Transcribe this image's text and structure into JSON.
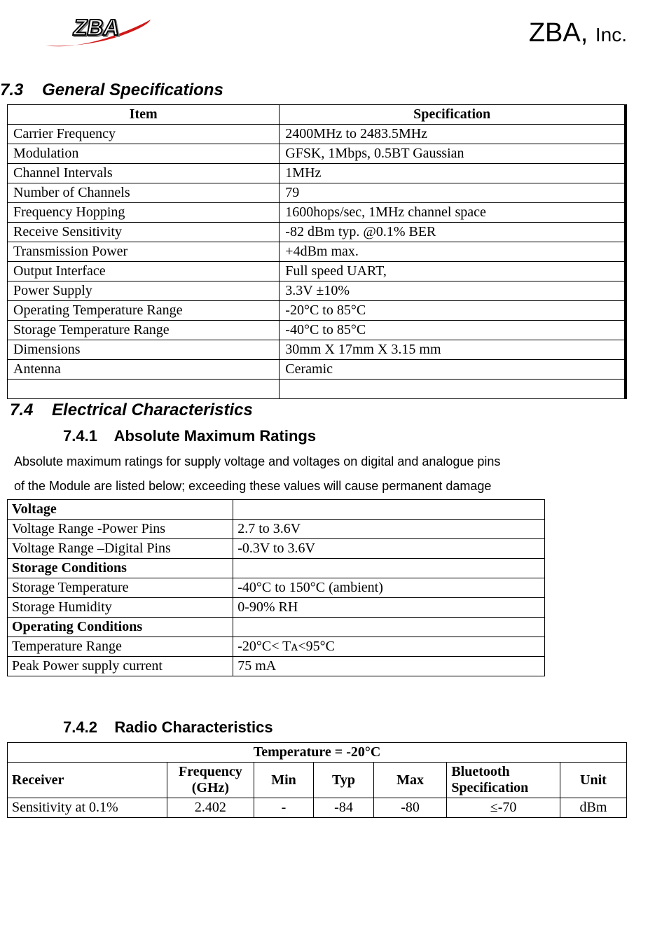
{
  "header": {
    "company": "ZBA,",
    "suffix": "Inc.",
    "logo_text": "ZBA",
    "logo_colors": {
      "swoosh": "#d01818",
      "text_outline": "#000000",
      "text_fill": "#ffffff",
      "shadow": "#888888"
    }
  },
  "section73": {
    "heading_num": "7.3",
    "heading_text": "General Specifications",
    "col1": "Item",
    "col2": "Specification",
    "rows": [
      {
        "item": "Carrier Frequency",
        "spec": "2400MHz to 2483.5MHz"
      },
      {
        "item": "Modulation",
        "spec": "GFSK, 1Mbps, 0.5BT Gaussian"
      },
      {
        "item": "Channel Intervals",
        "spec": "1MHz"
      },
      {
        "item": "Number of Channels",
        "spec": "79"
      },
      {
        "item": "Frequency Hopping",
        "spec": "1600hops/sec, 1MHz channel space"
      },
      {
        "item": "Receive Sensitivity",
        "spec": "-82 dBm typ. @0.1% BER"
      },
      {
        "item": "Transmission Power",
        "spec": "+4dBm max."
      },
      {
        "item": "Output Interface",
        "spec": "Full speed UART,"
      },
      {
        "item": "Power Supply",
        "spec": "3.3V ±10%"
      },
      {
        "item": "Operating Temperature Range",
        "spec": "-20°C to 85°C"
      },
      {
        "item": "Storage Temperature Range",
        "spec": "-40°C to 85°C"
      },
      {
        "item": "Dimensions",
        "spec": "30mm X 17mm X 3.15 mm"
      },
      {
        "item": "Antenna",
        "spec": "Ceramic"
      },
      {
        "item": "",
        "spec": ""
      }
    ]
  },
  "section74": {
    "heading_num": "7.4",
    "heading_text": "Electrical Characteristics"
  },
  "section741": {
    "heading_num": "7.4.1",
    "heading_text": "Absolute Maximum Ratings",
    "intro_line1": "Absolute maximum ratings for supply voltage and voltages on digital and analogue pins",
    "intro_line2": "of the Module are listed below; exceeding these values will cause permanent damage",
    "rows": [
      {
        "label": "Voltage",
        "value": "",
        "bold": true
      },
      {
        "label": "Voltage Range -Power Pins",
        "value": "2.7 to 3.6V",
        "bold": false
      },
      {
        "label": "Voltage Range –Digital Pins",
        "value": "-0.3V to 3.6V",
        "bold": false
      },
      {
        "label": "Storage Conditions",
        "value": "",
        "bold": true
      },
      {
        "label": "Storage Temperature",
        "value": "-40°C to 150°C (ambient)",
        "bold": false
      },
      {
        "label": "Storage Humidity",
        "value": "0-90% RH",
        "bold": false
      },
      {
        "label": "Operating Conditions",
        "value": "",
        "bold": true
      },
      {
        "label": "Temperature Range",
        "value": "-20°C< Tᴀ<95°C",
        "bold": false
      },
      {
        "label": "Peak Power supply current",
        "value": "75 mA",
        "bold": false
      }
    ]
  },
  "section742": {
    "heading_num": "7.4.2",
    "heading_text": "Radio Characteristics",
    "title_row": "Temperature = -20°C",
    "cols": {
      "receiver": "Receiver",
      "freq": "Frequency (GHz)",
      "min": "Min",
      "typ": "Typ",
      "max": "Max",
      "bt": "Bluetooth Specification",
      "unit": "Unit"
    },
    "row1": {
      "receiver": "Sensitivity at 0.1%",
      "freq": "2.402",
      "min": "-",
      "typ": "-84",
      "max": "-80",
      "bt": "≤-70",
      "unit": "dBm"
    }
  },
  "styling": {
    "font_family_body": "Times New Roman",
    "font_family_headings": "Arial",
    "border_color": "#000000",
    "background_color": "#ffffff",
    "text_color": "#000000"
  }
}
